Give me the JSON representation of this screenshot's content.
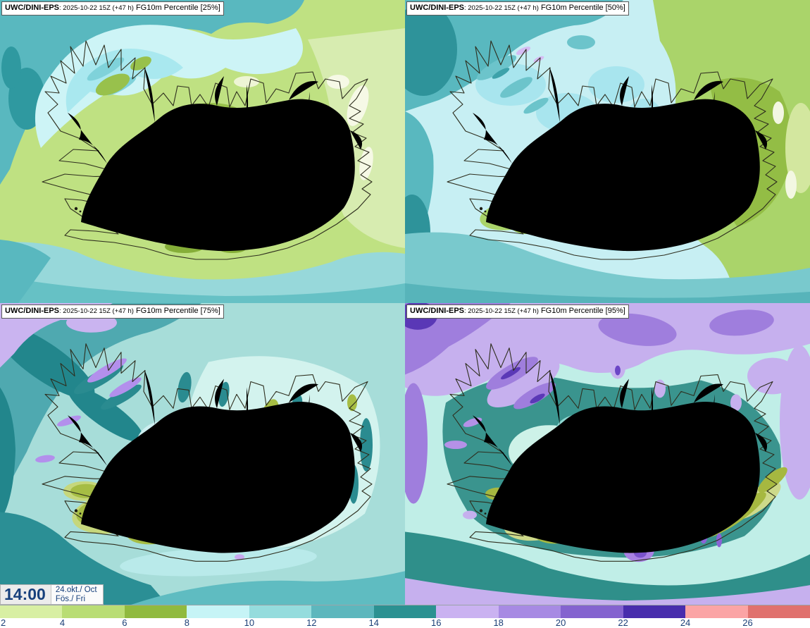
{
  "panels": [
    {
      "model": "UWC/DINI-EPS",
      "meta": ": 2025-10-22 15Z (+47 h)",
      "field": "FG10m Percentile [25%]"
    },
    {
      "model": "UWC/DINI-EPS",
      "meta": ": 2025-10-22 15Z (+47 h)",
      "field": "FG10m Percentile [50%]"
    },
    {
      "model": "UWC/DINI-EPS",
      "meta": ": 2025-10-22 15Z (+47 h)",
      "field": "FG10m Percentile [75%]"
    },
    {
      "model": "UWC/DINI-EPS",
      "meta": ": 2025-10-22 15Z (+47 h)",
      "field": "FG10m Percentile [95%]"
    }
  ],
  "clock": {
    "time": "14:00",
    "date_top": "24.okt./ Oct",
    "date_bottom": "Fös./ Fri"
  },
  "colorbar": {
    "ticks": [
      "2",
      "4",
      "6",
      "8",
      "10",
      "12",
      "14",
      "16",
      "18",
      "20",
      "22",
      "24",
      "26"
    ],
    "segments": [
      "#d8efa3",
      "#b9dd74",
      "#90ba3f",
      "#c6f4f6",
      "#95dcdd",
      "#5db7bd",
      "#2b9191",
      "#cab2f1",
      "#a78ae3",
      "#8463cf",
      "#482dad",
      "#fba4a5",
      "#e0716d"
    ],
    "tick_color": "#1b3f77"
  },
  "chart_data": {
    "type": "heatmap",
    "title": "UWC/DINI-EPS FG10m wind gust percentile maps (Iceland)",
    "panels": [
      "25%",
      "50%",
      "75%",
      "95%"
    ],
    "run": "2025-10-22 15Z",
    "lead_hours": 47,
    "valid_time": "14:00 24.okt./ Oct Fös./ Fri",
    "scale_values": [
      2,
      4,
      6,
      8,
      10,
      12,
      14,
      16,
      18,
      20,
      22,
      24,
      26
    ],
    "scale_colors": [
      "#d8efa3",
      "#b9dd74",
      "#90ba3f",
      "#c6f4f6",
      "#95dcdd",
      "#5db7bd",
      "#2b9191",
      "#cab2f1",
      "#a78ae3",
      "#8463cf",
      "#482dad",
      "#fba4a5",
      "#e0716d"
    ],
    "legend_position": "bottom"
  }
}
